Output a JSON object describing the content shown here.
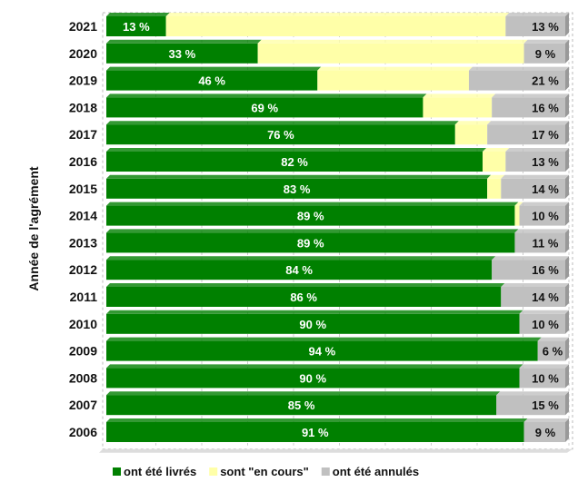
{
  "chart_data": {
    "type": "bar",
    "orientation": "horizontal",
    "stacked": "percent",
    "ylabel": "Année de l'agrément",
    "xlim": [
      0,
      100
    ],
    "grid": true,
    "legend_placement": "bottom",
    "categories": [
      "2021",
      "2020",
      "2019",
      "2018",
      "2017",
      "2016",
      "2015",
      "2014",
      "2013",
      "2012",
      "2011",
      "2010",
      "2009",
      "2008",
      "2007",
      "2006"
    ],
    "series": [
      {
        "name": "ont été livrés",
        "color": "#008000",
        "values": [
          13,
          33,
          46,
          69,
          76,
          82,
          83,
          89,
          89,
          84,
          86,
          90,
          94,
          90,
          85,
          91
        ],
        "labels": [
          "13 %",
          "33 %",
          "46 %",
          "69 %",
          "76 %",
          "82 %",
          "83 %",
          "89 %",
          "89 %",
          "84 %",
          "86 %",
          "90 %",
          "94 %",
          "90 %",
          "85 %",
          "91 %"
        ]
      },
      {
        "name": "sont \"en cours\"",
        "color": "#FFFFA8",
        "values": [
          74,
          58,
          33,
          15,
          7,
          5,
          3,
          1,
          0,
          0,
          0,
          0,
          0,
          0,
          0,
          0
        ]
      },
      {
        "name": "ont été annulés",
        "color": "#C0C0C0",
        "values": [
          13,
          9,
          21,
          16,
          17,
          13,
          14,
          10,
          11,
          16,
          14,
          10,
          6,
          10,
          15,
          9
        ],
        "labels": [
          "13 %",
          "9 %",
          "21 %",
          "16 %",
          "17 %",
          "13 %",
          "14 %",
          "10 %",
          "11 %",
          "16 %",
          "14 %",
          "10 %",
          "6 %",
          "10 %",
          "15 %",
          "9 %"
        ]
      }
    ]
  }
}
